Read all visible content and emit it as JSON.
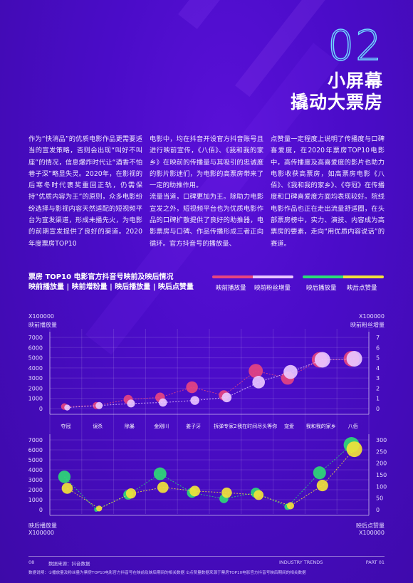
{
  "section": {
    "number": "02",
    "title_line1": "小屏幕",
    "title_line2": "撬动大票房"
  },
  "body_text": {
    "col1": "作为“快消品”的优质电影作品更需要适当的宣发策略，否则会出现“叫好不叫座”的情况，信息爆炸时代让“酒香不怕巷子深”略显失灵。2020年，在影视的后寒冬时代褒奖重回正轨，仍需保持“优质内容为王”的原则，众多电影纷纷选择与影视内容天然适配的短视频平台为宣发渠道，形成未播先火，为电影的前期宣发提供了良好的渠道。2020年度票房TOP10",
    "col2": "电影中，均在抖音开设官方抖音账号且进行映前宣传，《八佰》、《我和我的家乡》在映前的传播量与其吸引的忠诚度的影片影迷们，为电影的高票房带来了一定的助推作用。\n流量当道，口碑更加为王。除助力电影宣发之外，短视频平台也为优质电影作品的口碑扩散提供了良好的助推器，电影票房与口碑、作品传播形成三者正向循环。官方抖音号的播放量、",
    "col3": "点赞量一定程度上说明了传播度与口碑喜爱度，在2020年票房TOP10电影中，高传播度及高喜爱度的影片也助力电影收获高票房，如高票房电影《八佰》、《我和我的家乡》、《夺冠》在传播度和口碑喜爱度方面均表现较好。院线电影作品也正在走出流量舒适圈，在头部票房榜中，实力、演技、内容成为高票房的要素，走向“用优质内容说话”的赛道。"
  },
  "chart_heading": {
    "line1": "票房 TOP10 电影官方抖音号映前及映后情况",
    "line2": "映前播放量 | 映前增粉量 | 映后播放量 | 映后点赞量"
  },
  "legend": {
    "pre_play": "映前播放量",
    "pre_fans": "映前粉丝增量",
    "post_play": "映后播放量",
    "post_like": "映后点赞量"
  },
  "axis_labels": {
    "top_left_unit": "X100000",
    "top_left_name": "映前播放量",
    "top_right_unit": "X100000",
    "top_right_name": "映前粉丝增量",
    "bottom_left_name": "映后播放量",
    "bottom_left_unit": "X100000",
    "bottom_right_name": "映后点赞量",
    "bottom_right_unit": "X100000"
  },
  "chart_data": [
    {
      "type": "scatter",
      "title": "映前",
      "categories": [
        "夺冠",
        "误杀",
        "除暴",
        "金刚川",
        "姜子牙",
        "拆弹专家2",
        "我在时间尽头等你",
        "宠爱",
        "我和我的家乡",
        "八佰"
      ],
      "ylim_left": [
        0,
        7000
      ],
      "ylim_right": [
        0,
        7
      ],
      "left_ticks": [
        "0",
        "1000",
        "2000",
        "3000",
        "4000",
        "5000",
        "6000",
        "7000"
      ],
      "right_ticks": [
        "0",
        "1",
        "2",
        "3",
        "4",
        "5",
        "6",
        "7"
      ],
      "series": [
        {
          "name": "映前播放量",
          "axis": "left",
          "color": "#e8457f",
          "values": [
            200,
            300,
            900,
            1100,
            2100,
            1300,
            3700,
            3000,
            4800,
            4900
          ]
        },
        {
          "name": "映前粉丝增量",
          "axis": "right",
          "color": "#e9c6ff",
          "values": [
            0.1,
            0.3,
            0.5,
            0.6,
            0.8,
            1.1,
            2.6,
            3.6,
            4.8,
            4.9
          ]
        }
      ]
    },
    {
      "type": "scatter",
      "title": "映后",
      "categories": [
        "夺冠",
        "误杀",
        "除暴",
        "金刚川",
        "姜子牙",
        "拆弹专家2",
        "我在时间尽头等你",
        "宠爱",
        "我和我的家乡",
        "八佰"
      ],
      "ylim_left": [
        0,
        7000
      ],
      "ylim_right": [
        0,
        300
      ],
      "left_ticks": [
        "0",
        "1000",
        "2000",
        "3000",
        "4000",
        "5000",
        "6000",
        "7000"
      ],
      "right_ticks": [
        "0",
        "50",
        "100",
        "150",
        "200",
        "250",
        "300"
      ],
      "series": [
        {
          "name": "映后播放量",
          "axis": "left",
          "color": "#2ddc76",
          "values": [
            3300,
            0,
            1500,
            3600,
            1700,
            1100,
            1700,
            300,
            3700,
            6500
          ]
        },
        {
          "name": "映后点赞量",
          "axis": "right",
          "color": "#f1e23a",
          "values": [
            92,
            5,
            70,
            96,
            80,
            73,
            63,
            17,
            104,
            260
          ]
        }
      ]
    }
  ],
  "footer": {
    "page": "08",
    "source": "数据来源：抖音数据",
    "center": "INDUSTRY TRENDS",
    "part": "PART 01",
    "note": "数据说明：①播放量及粉丝量为票房TOP10电影官方抖音号在映前及映后期间的相关数据 ②点赞量数据来源于票房TOP10电影官方抖音号映后期间的相关数据"
  }
}
